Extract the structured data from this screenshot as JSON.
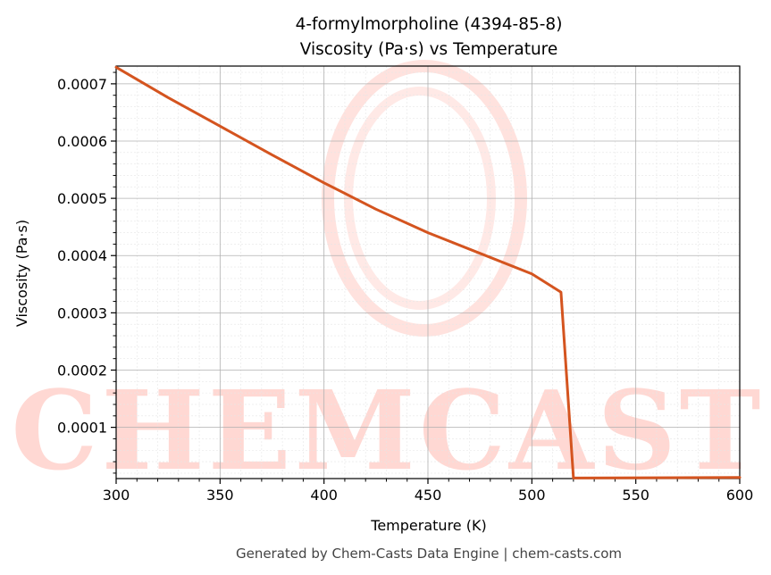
{
  "chart_data": {
    "type": "line",
    "title": "4-formylmorpholine (4394-85-8)",
    "subtitle": "Viscosity (Pa·s) vs Temperature",
    "xlabel": "Temperature (K)",
    "ylabel": "Viscosity (Pa·s)",
    "xlim": [
      300,
      600
    ],
    "ylim": [
      1.05e-05,
      0.000731
    ],
    "x_ticks": [
      "300",
      "350",
      "400",
      "450",
      "500",
      "550",
      "600"
    ],
    "y_ticks": [
      "0.0001",
      "0.0002",
      "0.0003",
      "0.0004",
      "0.0005",
      "0.0006",
      "0.0007"
    ],
    "grid": true,
    "legend": "none",
    "series": [
      {
        "color": "#d4541f",
        "x": [
          300,
          325,
          350,
          375,
          400,
          425,
          450,
          475,
          500,
          514,
          520,
          600
        ],
        "y": [
          0.000729,
          0.000676,
          0.000626,
          0.000576,
          0.000527,
          0.000481,
          0.00044,
          0.000404,
          0.000368,
          0.000336,
          1.15e-05,
          1.25e-05
        ]
      }
    ]
  },
  "watermark": {
    "text": "CHEMCASTS",
    "color": "#ffd8d3"
  },
  "footer": {
    "text": "Generated by Chem-Casts Data Engine | chem-casts.com"
  }
}
